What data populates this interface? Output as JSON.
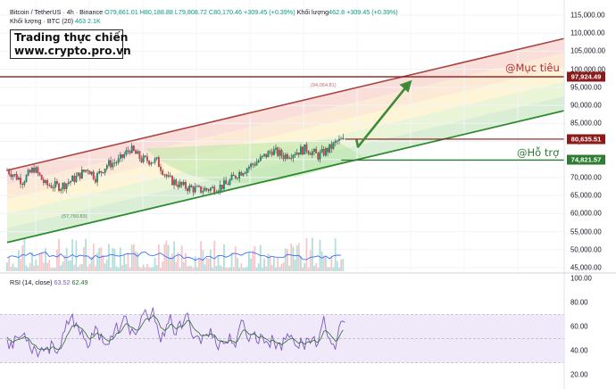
{
  "header": {
    "symbol": "Bitcoin / TetherUS · 4h · Binance",
    "open": "O79,861.01",
    "high": "H80,188.88",
    "low": "L79,808.72",
    "close": "C80,170.46",
    "change": "+309.45 (+0.39%)",
    "volume_label": "Khối lượng",
    "volume_value": "462.8",
    "volume_change": "+309.45 (+0.39%)",
    "vol_sma_label": "Khối lượng · BTC (20)",
    "vol_sma_v1": "463",
    "vol_sma_v2": "2.1K",
    "rsi_label": "RSI (14, close)",
    "rsi_v1": "63.52",
    "rsi_v2": "62.49"
  },
  "brand": {
    "line1": "Trading thực chiến",
    "line2": "www.crypto.pro.vn"
  },
  "annotations": {
    "target": "@Mục tiêu",
    "support": "@Hỗ trợ",
    "peak_label": "(94,064.81)",
    "low_label": "(57,760.83)"
  },
  "price_tags": [
    {
      "label": "97,924.49",
      "value": 97924.49,
      "color": "#8b1a1a"
    },
    {
      "label": "80,635.51",
      "value": 80635.51,
      "color": "#8b1a1a"
    },
    {
      "label": "74,821.57",
      "value": 74821.57,
      "color": "#2e7d32"
    }
  ],
  "colors": {
    "up": "#089981",
    "down": "#f23645",
    "channel_upper": "#a94442",
    "channel_lower": "#2e8b2e",
    "target": "#8b1a1a",
    "support": "#2e7d32",
    "rsi": "#7e57c2",
    "rsi_ma": "#2a6c2a",
    "rsi_band": "#7e57c2"
  },
  "chart_data": [
    {
      "type": "candlestick",
      "title": "Bitcoin / TetherUS · 4h · Binance",
      "ylim": [
        45000,
        115000
      ],
      "y_ticks": [
        "115,000.00",
        "110,000.00",
        "105,000.00",
        "100,000.00",
        "95,000.00",
        "90,000.00",
        "85,000.00",
        "80,000.00",
        "75,000.00",
        "70,000.00",
        "65,000.00",
        "60,000.00",
        "55,000.00",
        "50,000.00",
        "45,000.00"
      ],
      "y_tick_values": [
        115000,
        110000,
        105000,
        100000,
        95000,
        90000,
        85000,
        80000,
        75000,
        70000,
        65000,
        60000,
        55000,
        50000,
        45000
      ],
      "price_path_keypoints": [
        {
          "t": 0,
          "v": 72000
        },
        {
          "t": 8,
          "v": 69000
        },
        {
          "t": 14,
          "v": 72500
        },
        {
          "t": 20,
          "v": 68000
        },
        {
          "t": 28,
          "v": 67500
        },
        {
          "t": 36,
          "v": 70000
        },
        {
          "t": 42,
          "v": 72500
        },
        {
          "t": 46,
          "v": 70000
        },
        {
          "t": 52,
          "v": 73500
        },
        {
          "t": 58,
          "v": 74500
        },
        {
          "t": 64,
          "v": 78000
        },
        {
          "t": 70,
          "v": 75000
        },
        {
          "t": 78,
          "v": 74500
        },
        {
          "t": 84,
          "v": 69500
        },
        {
          "t": 92,
          "v": 67500
        },
        {
          "t": 100,
          "v": 66500
        },
        {
          "t": 108,
          "v": 67000
        },
        {
          "t": 114,
          "v": 68000
        },
        {
          "t": 120,
          "v": 71000
        },
        {
          "t": 126,
          "v": 73000
        },
        {
          "t": 132,
          "v": 75000
        },
        {
          "t": 138,
          "v": 77500
        },
        {
          "t": 144,
          "v": 76000
        },
        {
          "t": 150,
          "v": 77000
        },
        {
          "t": 156,
          "v": 78000
        },
        {
          "t": 162,
          "v": 76000
        },
        {
          "t": 168,
          "v": 78000
        },
        {
          "t": 172,
          "v": 80000
        },
        {
          "t": 175,
          "v": 80170
        }
      ],
      "channel_upper": [
        {
          "t": 0,
          "v": 72000
        },
        {
          "t": 290,
          "v": 108500
        }
      ],
      "channel_lower": [
        {
          "t": 0,
          "v": 52000
        },
        {
          "t": 290,
          "v": 88500
        }
      ],
      "projection_arrow": [
        {
          "t": 180,
          "v": 79000
        },
        {
          "t": 210,
          "v": 96500
        }
      ],
      "levels": [
        97924.49,
        80635.51,
        74821.57
      ]
    },
    {
      "type": "bar",
      "title": "Khối lượng · BTC (20)",
      "note": "volume bars, relative heights"
    },
    {
      "type": "line",
      "title": "RSI (14, close)",
      "ylim": [
        20,
        100
      ],
      "y_ticks": [
        "100.00",
        "80.00",
        "60.00",
        "40.00",
        "20.00"
      ],
      "y_tick_values": [
        100,
        80,
        60,
        40,
        20
      ],
      "band": [
        30,
        70
      ],
      "midline": 50,
      "last": [
        63.52,
        62.49
      ]
    }
  ]
}
